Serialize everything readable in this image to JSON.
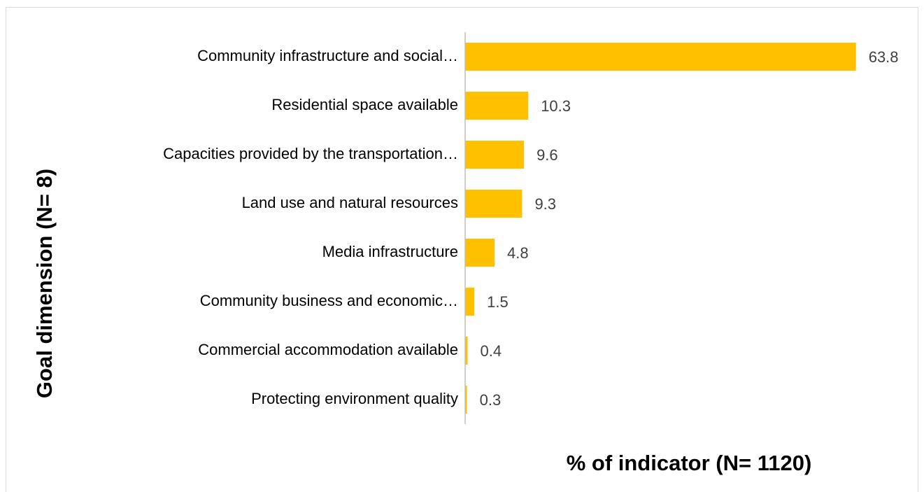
{
  "chart_data": {
    "type": "barh",
    "categories": [
      "Community infrastructure and social…",
      "Residential space available",
      "Capacities provided by the transportation…",
      "Land use and natural resources",
      "Media infrastructure",
      "Community business and economic…",
      "Commercial accommodation available",
      "Protecting environment quality"
    ],
    "values": [
      63.8,
      10.3,
      9.6,
      9.3,
      4.8,
      1.5,
      0.4,
      0.3
    ],
    "color": "#ffc000",
    "xlim": [
      0,
      70
    ],
    "x_label": "% of indicator (N= 1120)",
    "y_label": "Goal dimension (N= 8)"
  }
}
